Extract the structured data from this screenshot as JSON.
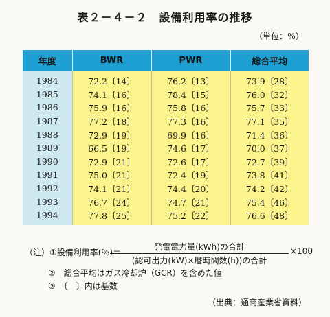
{
  "title": "表２－４－２　設備利用率の推移",
  "unit": "（単位：％）",
  "table": {
    "headers": [
      "年度",
      "BWR",
      "PWR",
      "総合平均"
    ],
    "rows": [
      [
        "1984",
        "72.2〔14〕",
        "76.2〔13〕",
        "73.9〔28〕"
      ],
      [
        "1985",
        "74.1〔16〕",
        "78.4〔15〕",
        "76.0〔32〕"
      ],
      [
        "1986",
        "75.9〔16〕",
        "75.8〔16〕",
        "75.7〔33〕"
      ],
      [
        "1987",
        "77.2〔18〕",
        "77.3〔16〕",
        "77.1〔35〕"
      ],
      [
        "1988",
        "72.9〔19〕",
        "69.9〔16〕",
        "71.4〔36〕"
      ],
      [
        "1989",
        "66.5〔19〕",
        "74.6〔17〕",
        "70.0〔37〕"
      ],
      [
        "1990",
        "72.9〔21〕",
        "72.6〔17〕",
        "72.7〔39〕"
      ],
      [
        "1991",
        "75.0〔21〕",
        "72.4〔19〕",
        "73.8〔41〕"
      ],
      [
        "1992",
        "74.1〔21〕",
        "74.4〔20〕",
        "74.2〔42〕"
      ],
      [
        "1993",
        "76.7〔24〕",
        "74.7〔21〕",
        "75.4〔46〕"
      ],
      [
        "1994",
        "77.8〔25〕",
        "75.2〔22〕",
        "76.6〔48〕"
      ]
    ]
  },
  "notes": {
    "note1_prefix": "（注）①設備利用率(％)＝",
    "note1_numerator": "発電電力量(kWh)の合計",
    "note1_denominator": "(認可出力(kW)×暦時間数(h))の合計",
    "note1_suffix": "×100",
    "note2": "②　総合平均はガス冷却炉（GCR）を含めた値",
    "note3": "③　〔　〕内は基数"
  },
  "source": "（出典：通商産業省資料）"
}
